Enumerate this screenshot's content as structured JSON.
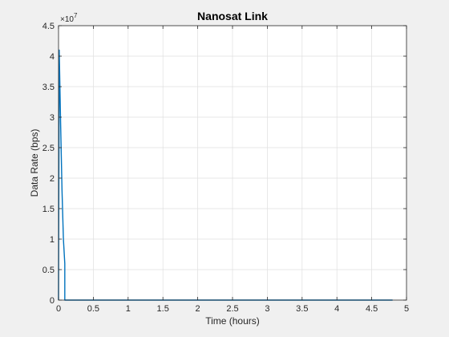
{
  "chart_data": {
    "type": "line",
    "title": "Nanosat Link",
    "xlabel": "Time (hours)",
    "ylabel": "Data Rate (bps)",
    "y_exponent_label": "×10",
    "y_exponent": "7",
    "xlim": [
      0,
      5
    ],
    "ylim": [
      0,
      45000000
    ],
    "grid": true,
    "x_ticks": [
      0,
      0.5,
      1,
      1.5,
      2,
      2.5,
      3,
      3.5,
      4,
      4.5,
      5
    ],
    "x_tick_labels": [
      "0",
      "0.5",
      "1",
      "1.5",
      "2",
      "2.5",
      "3",
      "3.5",
      "4",
      "4.5",
      "5"
    ],
    "y_ticks": [
      0,
      5000000,
      10000000,
      15000000,
      20000000,
      25000000,
      30000000,
      35000000,
      40000000,
      45000000
    ],
    "y_tick_labels": [
      "0",
      "0.5",
      "1",
      "1.5",
      "2",
      "2.5",
      "3",
      "3.5",
      "4",
      "4.5"
    ],
    "series": [
      {
        "color": "#0072bd",
        "x": [
          0.0,
          0.01,
          0.03,
          0.05,
          0.07,
          0.09,
          0.09,
          4.8
        ],
        "y": [
          0,
          41000000,
          29000000,
          18000000,
          10000000,
          6000000,
          0,
          0
        ]
      }
    ]
  }
}
